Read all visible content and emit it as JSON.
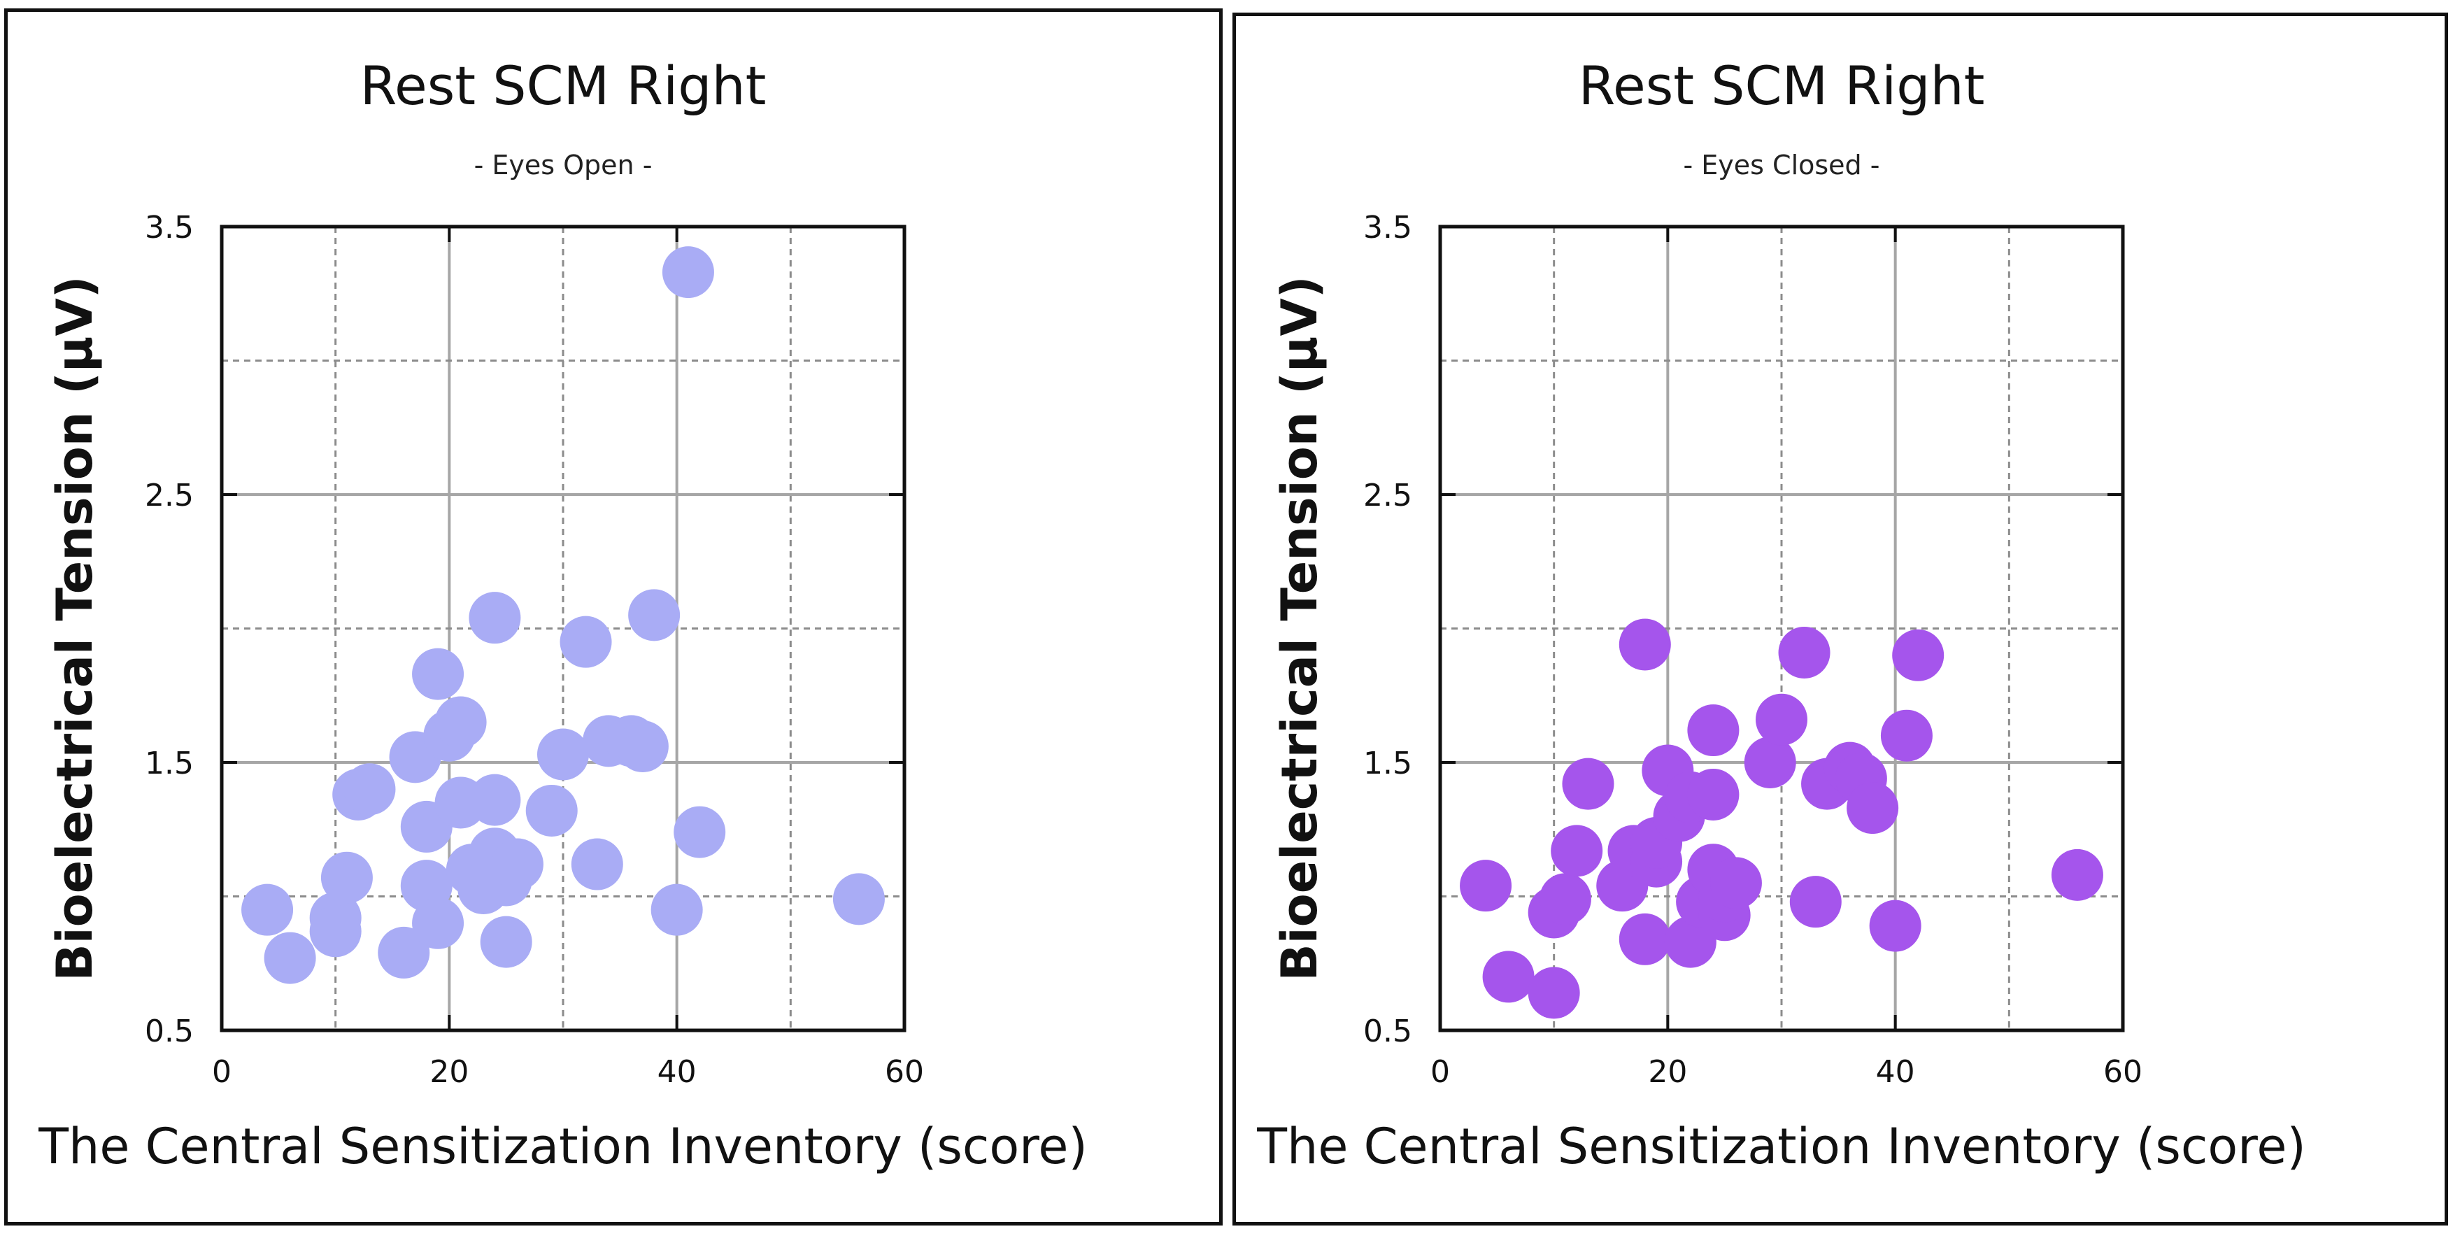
{
  "chart_data": [
    {
      "type": "scatter",
      "title": "Rest SCM Right",
      "subtitle": "- Eyes Open -",
      "xlabel": "The Central Sensitization Inventory (score)",
      "ylabel": "Bioelectrical Tension (μV)",
      "xlim": [
        0,
        60
      ],
      "ylim": [
        0.5,
        3.5
      ],
      "x_ticks": [
        "0",
        "20",
        "40",
        "60"
      ],
      "y_ticks": [
        "0.5",
        "1.5",
        "2.5",
        "3.5"
      ],
      "grid": true,
      "marker_color": "#A9ACF5",
      "points": [
        {
          "x": 4,
          "y": 0.95
        },
        {
          "x": 6,
          "y": 0.77
        },
        {
          "x": 10,
          "y": 0.92
        },
        {
          "x": 10,
          "y": 0.87
        },
        {
          "x": 11,
          "y": 1.07
        },
        {
          "x": 12,
          "y": 1.38
        },
        {
          "x": 13,
          "y": 1.4
        },
        {
          "x": 16,
          "y": 0.79
        },
        {
          "x": 17,
          "y": 1.52
        },
        {
          "x": 18,
          "y": 1.26
        },
        {
          "x": 18,
          "y": 1.04
        },
        {
          "x": 19,
          "y": 0.9
        },
        {
          "x": 19,
          "y": 1.83
        },
        {
          "x": 20,
          "y": 1.6
        },
        {
          "x": 21,
          "y": 1.65
        },
        {
          "x": 21,
          "y": 1.35
        },
        {
          "x": 22,
          "y": 1.1
        },
        {
          "x": 23,
          "y": 1.03
        },
        {
          "x": 24,
          "y": 1.36
        },
        {
          "x": 24,
          "y": 1.16
        },
        {
          "x": 24,
          "y": 2.04
        },
        {
          "x": 25,
          "y": 1.06
        },
        {
          "x": 25,
          "y": 0.83
        },
        {
          "x": 26,
          "y": 1.12
        },
        {
          "x": 29,
          "y": 1.32
        },
        {
          "x": 30,
          "y": 1.53
        },
        {
          "x": 32,
          "y": 1.95
        },
        {
          "x": 33,
          "y": 1.12
        },
        {
          "x": 34,
          "y": 1.58
        },
        {
          "x": 36,
          "y": 1.58
        },
        {
          "x": 37,
          "y": 1.56
        },
        {
          "x": 38,
          "y": 2.05
        },
        {
          "x": 40,
          "y": 0.95
        },
        {
          "x": 41,
          "y": 3.33
        },
        {
          "x": 42,
          "y": 1.24
        },
        {
          "x": 56,
          "y": 0.99
        }
      ]
    },
    {
      "type": "scatter",
      "title": "Rest SCM Right",
      "subtitle": "- Eyes Closed -",
      "xlabel": "The Central Sensitization Inventory (score)",
      "ylabel": "Bioelectrical Tension (μV)",
      "xlim": [
        0,
        60
      ],
      "ylim": [
        0.5,
        3.5
      ],
      "x_ticks": [
        "0",
        "20",
        "40",
        "60"
      ],
      "y_ticks": [
        "0.5",
        "1.5",
        "2.5",
        "3.5"
      ],
      "grid": true,
      "marker_color": "#A555EC",
      "points": [
        {
          "x": 4,
          "y": 1.04
        },
        {
          "x": 6,
          "y": 0.7
        },
        {
          "x": 10,
          "y": 0.64
        },
        {
          "x": 10,
          "y": 0.94
        },
        {
          "x": 11,
          "y": 0.99
        },
        {
          "x": 12,
          "y": 1.17
        },
        {
          "x": 13,
          "y": 1.42
        },
        {
          "x": 16,
          "y": 1.04
        },
        {
          "x": 17,
          "y": 1.17
        },
        {
          "x": 18,
          "y": 0.84
        },
        {
          "x": 18,
          "y": 1.94
        },
        {
          "x": 19,
          "y": 1.13
        },
        {
          "x": 19,
          "y": 1.2
        },
        {
          "x": 20,
          "y": 1.47
        },
        {
          "x": 21,
          "y": 1.3
        },
        {
          "x": 22,
          "y": 0.83
        },
        {
          "x": 22,
          "y": 1.37
        },
        {
          "x": 23,
          "y": 0.98
        },
        {
          "x": 24,
          "y": 1.1
        },
        {
          "x": 24,
          "y": 1.38
        },
        {
          "x": 24,
          "y": 1.62
        },
        {
          "x": 25,
          "y": 0.93
        },
        {
          "x": 25,
          "y": 1.0
        },
        {
          "x": 26,
          "y": 1.05
        },
        {
          "x": 29,
          "y": 1.5
        },
        {
          "x": 30,
          "y": 1.66
        },
        {
          "x": 32,
          "y": 1.91
        },
        {
          "x": 33,
          "y": 0.98
        },
        {
          "x": 34,
          "y": 1.42
        },
        {
          "x": 36,
          "y": 1.48
        },
        {
          "x": 37,
          "y": 1.44
        },
        {
          "x": 38,
          "y": 1.33
        },
        {
          "x": 40,
          "y": 0.89
        },
        {
          "x": 41,
          "y": 1.6
        },
        {
          "x": 42,
          "y": 1.9
        },
        {
          "x": 56,
          "y": 1.08
        }
      ]
    }
  ]
}
